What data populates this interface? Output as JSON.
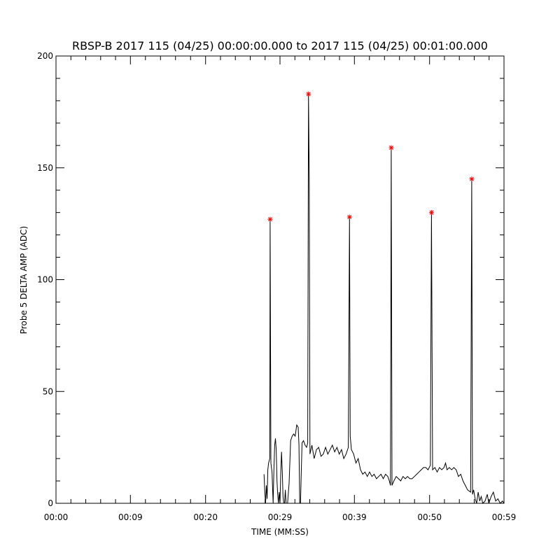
{
  "chart_data": {
    "type": "line",
    "title": "RBSP-B 2017 115 (04/25) 00:00:00.000 to 2017 115 (04/25) 00:01:00.000",
    "xlabel": "TIME (MM:SS)",
    "ylabel": "Probe 5 DELTA AMP (ADC)",
    "xlim": [
      0,
      59
    ],
    "ylim": [
      0,
      200
    ],
    "x_ticks": [
      {
        "value": 0,
        "label": "00:00"
      },
      {
        "value": 9.8,
        "label": "00:09"
      },
      {
        "value": 19.7,
        "label": "00:20"
      },
      {
        "value": 29.5,
        "label": "00:29"
      },
      {
        "value": 39.3,
        "label": "00:39"
      },
      {
        "value": 49.2,
        "label": "00:50"
      },
      {
        "value": 59,
        "label": "00:59"
      }
    ],
    "y_ticks": [
      {
        "value": 0,
        "label": "0"
      },
      {
        "value": 50,
        "label": "50"
      },
      {
        "value": 100,
        "label": "100"
      },
      {
        "value": 150,
        "label": "150"
      },
      {
        "value": 200,
        "label": "200"
      }
    ],
    "line_color": "#000000",
    "marker_color": "#ff0000",
    "series": [
      {
        "values": [
          [
            27.4,
            13
          ],
          [
            27.5,
            5
          ],
          [
            27.6,
            0
          ],
          [
            27.7,
            8
          ],
          [
            27.8,
            2
          ],
          [
            27.9,
            15
          ],
          [
            28.0,
            18
          ],
          [
            28.15,
            20
          ],
          [
            28.2,
            127
          ],
          [
            28.25,
            80
          ],
          [
            28.3,
            18
          ],
          [
            28.45,
            14
          ],
          [
            28.6,
            0
          ],
          [
            28.7,
            15
          ],
          [
            28.8,
            26
          ],
          [
            28.9,
            29
          ],
          [
            29.0,
            24
          ],
          [
            29.1,
            10
          ],
          [
            29.2,
            4
          ],
          [
            29.3,
            0
          ],
          [
            29.4,
            5
          ],
          [
            29.5,
            0
          ],
          [
            29.6,
            14
          ],
          [
            29.7,
            23
          ],
          [
            29.8,
            14
          ],
          [
            29.9,
            3
          ],
          [
            30.0,
            0
          ],
          [
            30.1,
            0
          ],
          [
            30.2,
            6
          ],
          [
            30.3,
            0
          ],
          [
            30.5,
            0
          ],
          [
            30.7,
            9
          ],
          [
            30.9,
            28
          ],
          [
            31.1,
            30
          ],
          [
            31.3,
            31
          ],
          [
            31.5,
            30
          ],
          [
            31.7,
            35
          ],
          [
            31.9,
            34
          ],
          [
            32.0,
            26
          ],
          [
            32.1,
            0
          ],
          [
            32.2,
            0
          ],
          [
            32.3,
            14
          ],
          [
            32.4,
            27
          ],
          [
            32.6,
            28
          ],
          [
            32.8,
            26
          ],
          [
            33.0,
            25
          ],
          [
            33.15,
            27
          ],
          [
            33.25,
            183
          ],
          [
            33.35,
            145
          ],
          [
            33.45,
            22
          ],
          [
            33.7,
            26
          ],
          [
            34.0,
            20
          ],
          [
            34.3,
            24
          ],
          [
            34.6,
            25
          ],
          [
            34.9,
            21
          ],
          [
            35.2,
            22
          ],
          [
            35.5,
            25
          ],
          [
            35.8,
            22
          ],
          [
            36.1,
            24
          ],
          [
            36.4,
            26
          ],
          [
            36.7,
            23
          ],
          [
            37.0,
            25
          ],
          [
            37.3,
            22
          ],
          [
            37.6,
            24
          ],
          [
            37.9,
            20
          ],
          [
            38.2,
            22
          ],
          [
            38.5,
            25
          ],
          [
            38.65,
            128
          ],
          [
            38.75,
            30
          ],
          [
            38.9,
            24
          ],
          [
            39.2,
            22
          ],
          [
            39.5,
            18
          ],
          [
            39.8,
            20
          ],
          [
            40.1,
            15
          ],
          [
            40.4,
            13
          ],
          [
            40.7,
            14
          ],
          [
            41.0,
            12
          ],
          [
            41.3,
            14
          ],
          [
            41.6,
            12
          ],
          [
            41.9,
            13
          ],
          [
            42.2,
            11
          ],
          [
            42.5,
            12
          ],
          [
            42.8,
            13
          ],
          [
            43.1,
            11
          ],
          [
            43.4,
            13
          ],
          [
            43.7,
            12
          ],
          [
            43.9,
            10
          ],
          [
            44.05,
            8
          ],
          [
            44.15,
            159
          ],
          [
            44.25,
            8
          ],
          [
            44.5,
            10
          ],
          [
            44.8,
            12
          ],
          [
            45.1,
            11
          ],
          [
            45.4,
            10
          ],
          [
            45.7,
            12
          ],
          [
            46.0,
            11
          ],
          [
            46.3,
            12
          ],
          [
            46.6,
            11
          ],
          [
            46.9,
            11
          ],
          [
            47.2,
            12
          ],
          [
            47.5,
            13
          ],
          [
            47.8,
            14
          ],
          [
            48.1,
            15
          ],
          [
            48.4,
            16
          ],
          [
            48.7,
            16
          ],
          [
            49.0,
            15
          ],
          [
            49.3,
            17
          ],
          [
            49.45,
            130
          ],
          [
            49.6,
            15
          ],
          [
            49.9,
            16
          ],
          [
            50.2,
            14
          ],
          [
            50.5,
            16
          ],
          [
            50.8,
            15
          ],
          [
            51.1,
            16
          ],
          [
            51.3,
            18
          ],
          [
            51.5,
            15
          ],
          [
            51.8,
            16
          ],
          [
            52.1,
            15
          ],
          [
            52.4,
            16
          ],
          [
            52.7,
            15
          ],
          [
            53.0,
            12
          ],
          [
            53.3,
            13
          ],
          [
            53.6,
            10
          ],
          [
            53.9,
            8
          ],
          [
            54.2,
            6
          ],
          [
            54.6,
            5
          ],
          [
            54.75,
            145
          ],
          [
            54.85,
            4
          ],
          [
            55.0,
            6
          ],
          [
            55.2,
            2
          ],
          [
            55.4,
            0
          ],
          [
            55.6,
            5
          ],
          [
            55.8,
            1
          ],
          [
            56.0,
            3
          ],
          [
            56.2,
            0
          ],
          [
            56.5,
            1
          ],
          [
            56.8,
            4
          ],
          [
            57.0,
            0
          ],
          [
            57.3,
            3
          ],
          [
            57.6,
            5
          ],
          [
            57.9,
            1
          ],
          [
            58.2,
            2
          ],
          [
            58.5,
            0
          ],
          [
            58.8,
            1
          ],
          [
            59.0,
            0
          ]
        ]
      }
    ],
    "peaks": [
      [
        28.2,
        127
      ],
      [
        33.25,
        183
      ],
      [
        38.65,
        128
      ],
      [
        44.15,
        159
      ],
      [
        49.45,
        130
      ],
      [
        54.75,
        145
      ]
    ]
  }
}
